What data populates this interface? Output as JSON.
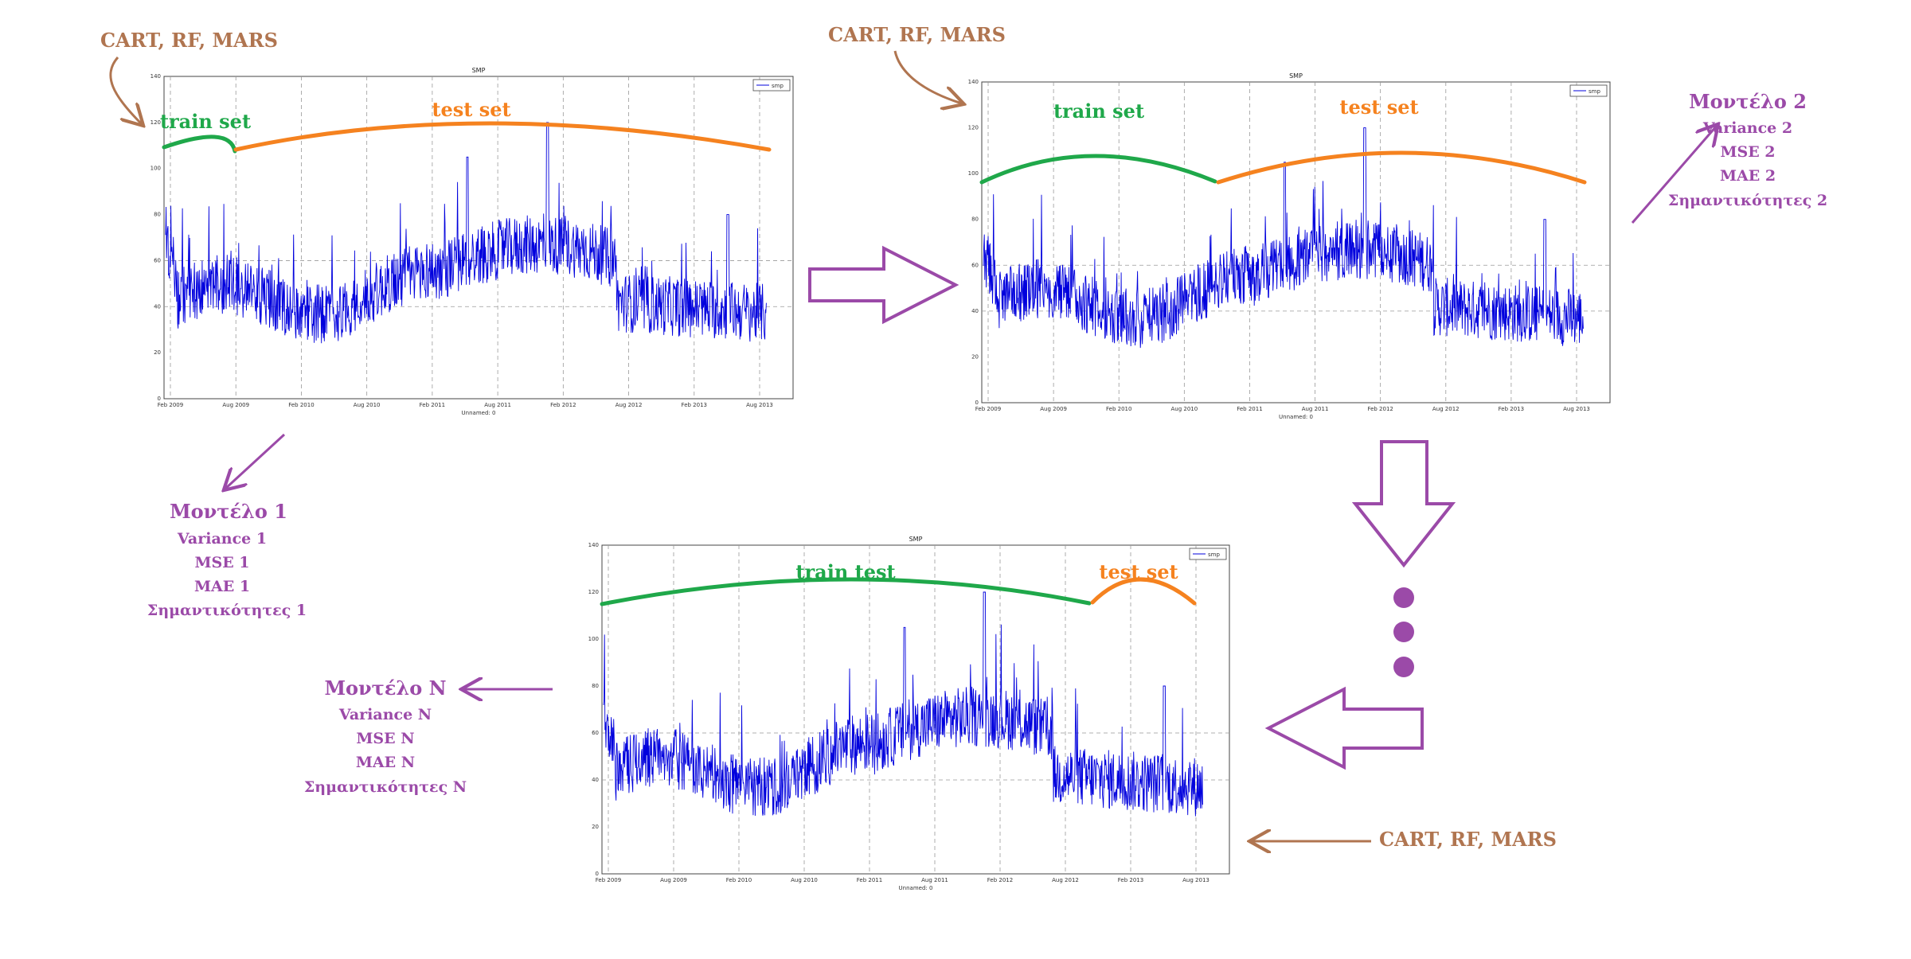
{
  "colors": {
    "algo": "#b07550",
    "train": "#1fa84a",
    "test": "#f5821f",
    "model": "#9b4aa8",
    "series": "#0000dd"
  },
  "algorithms_label": "CART, RF, MARS",
  "chart_data": [
    {
      "type": "line",
      "title": "SMP",
      "legend": "smp",
      "legend_position": "top-right",
      "xlabel": "Unnamed: 0",
      "x_ticks": [
        "Feb 2009",
        "Aug 2009",
        "Feb 2010",
        "Aug 2010",
        "Feb 2011",
        "Aug 2011",
        "Feb 2012",
        "Aug 2012",
        "Feb 2013",
        "Aug 2013"
      ],
      "y_ticks": [
        "0",
        "20",
        "40",
        "60",
        "80",
        "100",
        "120",
        "140"
      ],
      "ylim": [
        0,
        140
      ],
      "grid": true,
      "train_label": "train set",
      "test_label": "test set"
    },
    {
      "type": "line",
      "title": "SMP",
      "legend": "smp",
      "legend_position": "top-right",
      "xlabel": "Unnamed: 0",
      "x_ticks": [
        "Feb 2009",
        "Aug 2009",
        "Feb 2010",
        "Aug 2010",
        "Feb 2011",
        "Aug 2011",
        "Feb 2012",
        "Aug 2012",
        "Feb 2013",
        "Aug 2013"
      ],
      "y_ticks": [
        "0",
        "20",
        "40",
        "60",
        "80",
        "100",
        "120",
        "140"
      ],
      "ylim": [
        0,
        140
      ],
      "grid": true,
      "train_label": "train set",
      "test_label": "test set"
    },
    {
      "type": "line",
      "title": "SMP",
      "legend": "smp",
      "legend_position": "top-right",
      "xlabel": "Unnamed: 0",
      "x_ticks": [
        "Feb 2009",
        "Aug 2009",
        "Feb 2010",
        "Aug 2010",
        "Feb 2011",
        "Aug 2011",
        "Feb 2012",
        "Aug 2012",
        "Feb 2013",
        "Aug 2013"
      ],
      "y_ticks": [
        "0",
        "20",
        "40",
        "60",
        "80",
        "100",
        "120",
        "140"
      ],
      "ylim": [
        0,
        140
      ],
      "grid": true,
      "train_label": "train test",
      "test_label": "test set"
    }
  ],
  "models": [
    {
      "title": "Μοντέλο 1",
      "lines": [
        "Variance 1",
        "MSE 1",
        "MAE 1",
        "Σημαντικότητες 1"
      ]
    },
    {
      "title": "Μοντέλο 2",
      "lines": [
        "Variance 2",
        "MSE 2",
        "MAE 2",
        "Σημαντικότητες 2"
      ]
    },
    {
      "title": "Μοντέλο Ν",
      "lines": [
        "Variance  N",
        "MSE  N",
        "MAE  N",
        "Σημαντικότητες Ν"
      ]
    }
  ]
}
